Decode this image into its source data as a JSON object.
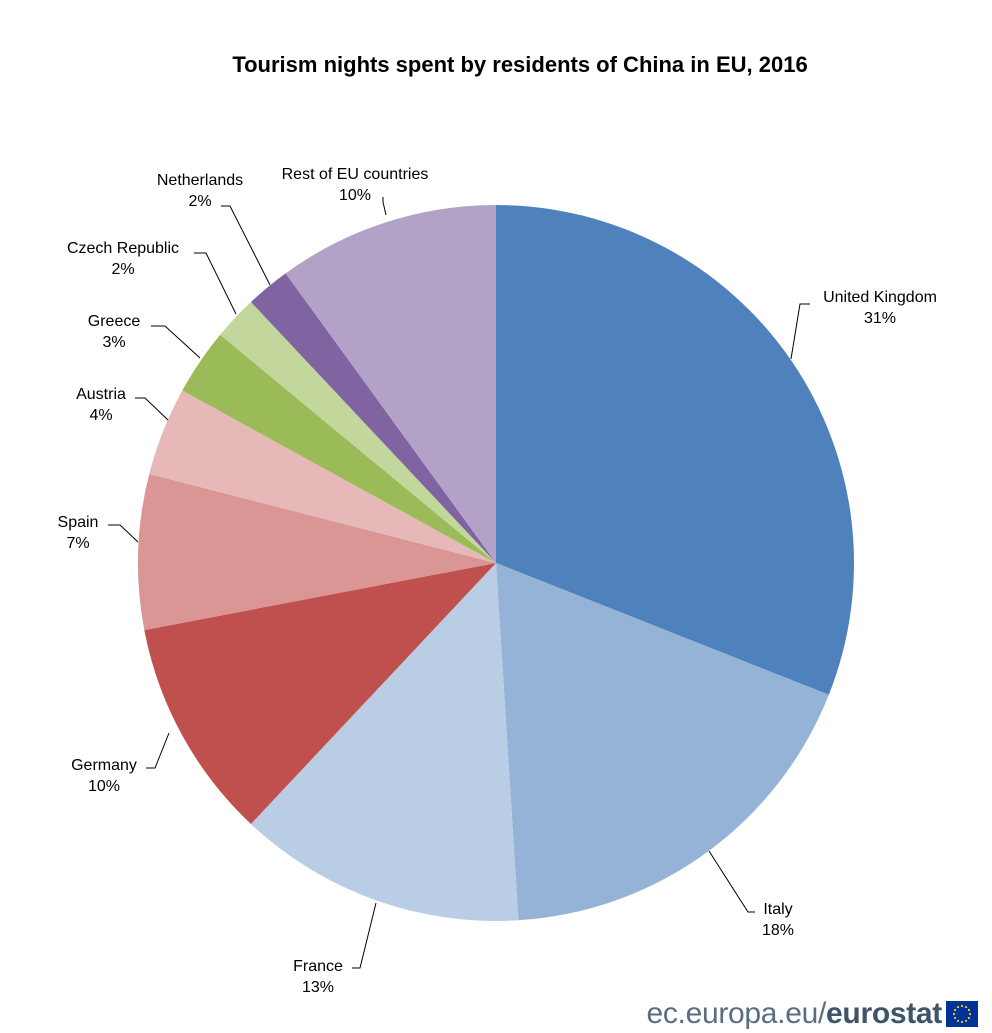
{
  "chart_data": {
    "type": "pie",
    "title": "Tourism nights spent by residents of China in EU, 2016",
    "slices": [
      {
        "label": "United Kingdom",
        "value": 31,
        "value_label": "31%",
        "color": "#4f81bd"
      },
      {
        "label": "Italy",
        "value": 18,
        "value_label": "18%",
        "color": "#95b3d7"
      },
      {
        "label": "France",
        "value": 13,
        "value_label": "13%",
        "color": "#b9cde5"
      },
      {
        "label": "Germany",
        "value": 10,
        "value_label": "10%",
        "color": "#c0504d"
      },
      {
        "label": "Spain",
        "value": 7,
        "value_label": "7%",
        "color": "#d99694"
      },
      {
        "label": "Austria",
        "value": 4,
        "value_label": "4%",
        "color": "#e6b9b8"
      },
      {
        "label": "Greece",
        "value": 3,
        "value_label": "3%",
        "color": "#9bbb59"
      },
      {
        "label": "Czech Republic",
        "value": 2,
        "value_label": "2%",
        "color": "#c3d69b"
      },
      {
        "label": "Netherlands",
        "value": 2,
        "value_label": "2%",
        "color": "#8064a2"
      },
      {
        "label": "Rest of EU countries",
        "value": 10,
        "value_label": "10%",
        "color": "#b2a2c7"
      }
    ],
    "start": "12 o'clock",
    "direction": "clockwise",
    "legend": "none"
  },
  "footer": {
    "domain": "ec.europa.eu/",
    "brand": "eurostat",
    "flag_colors": {
      "background": "#003399",
      "stars": "#ffcc00"
    }
  }
}
